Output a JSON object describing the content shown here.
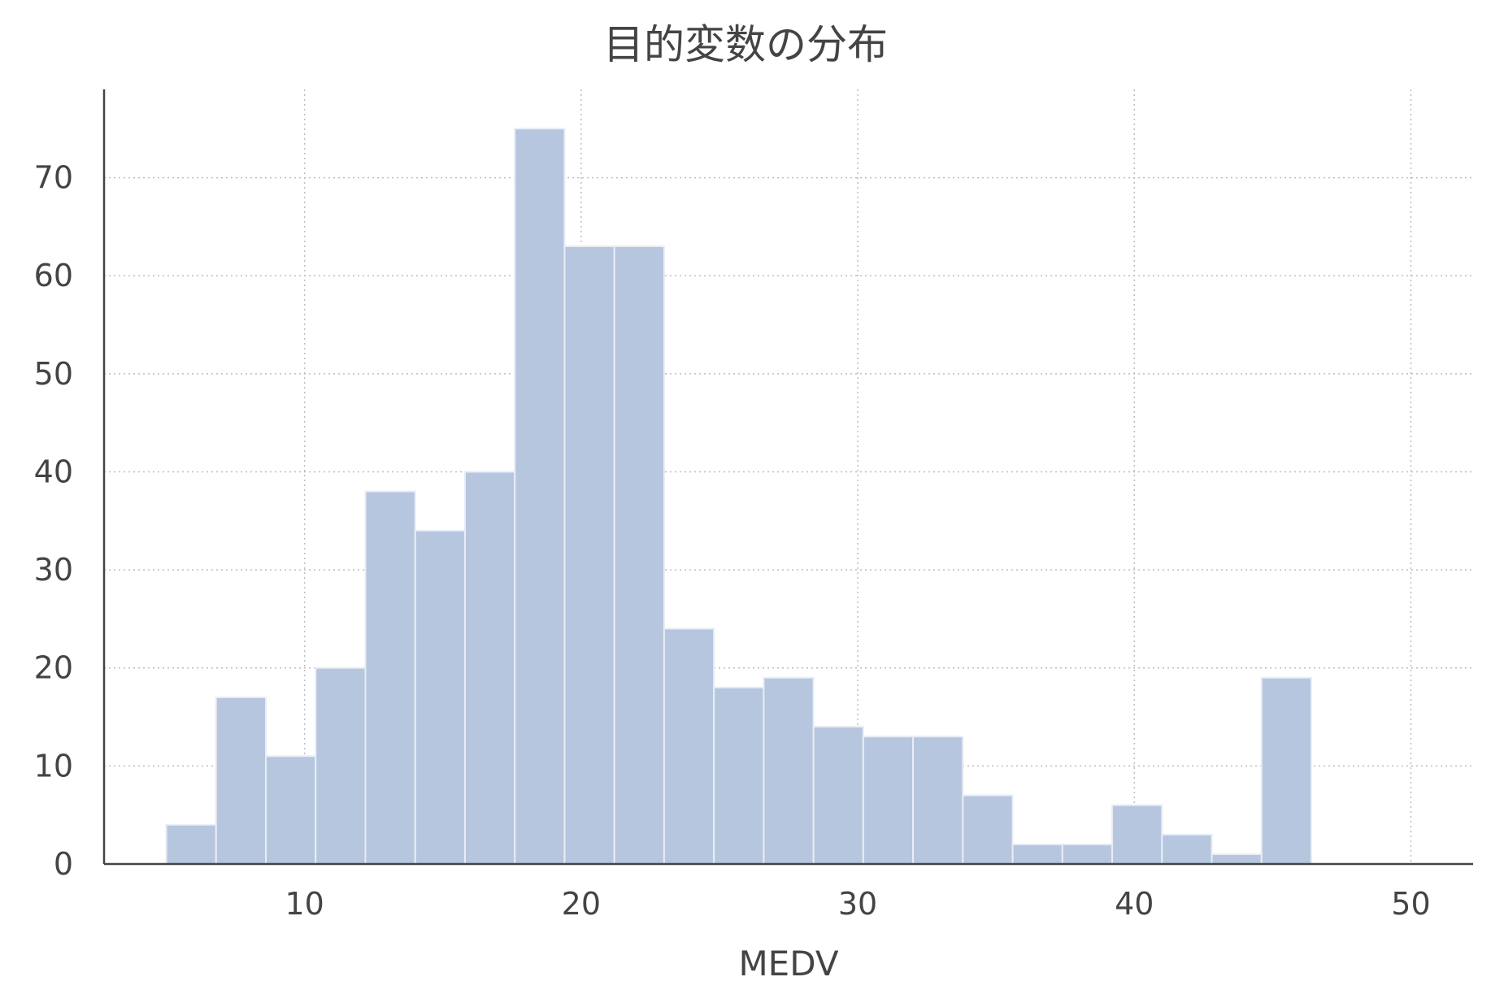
{
  "chart_data": {
    "type": "bar",
    "title": "目的変数の分布",
    "xlabel": "MEDV",
    "ylabel": "",
    "xlim": [
      2.75,
      52.25
    ],
    "ylim": [
      0,
      79
    ],
    "xticks": [
      10,
      20,
      30,
      40,
      50
    ],
    "yticks": [
      0,
      10,
      20,
      30,
      40,
      50,
      60,
      70
    ],
    "grid": true,
    "bar_color": "#b6c6df",
    "bin_start": 5,
    "bin_width": 1.8,
    "values": [
      4,
      17,
      11,
      20,
      38,
      34,
      40,
      75,
      63,
      63,
      24,
      18,
      19,
      14,
      13,
      13,
      7,
      2,
      2,
      6,
      3,
      1,
      19
    ]
  }
}
